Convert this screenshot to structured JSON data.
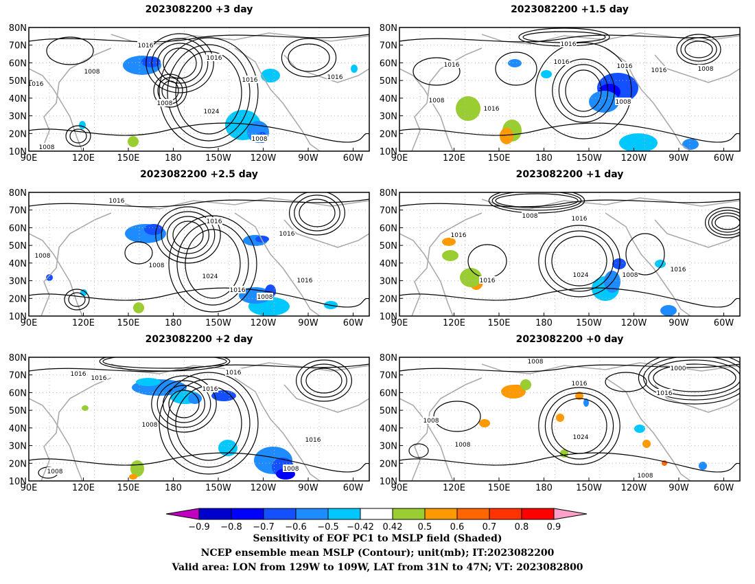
{
  "panels": [
    {
      "title": "2023082200 +3 day",
      "labels": [
        "1016",
        "1016",
        "1008",
        "1016",
        "1008",
        "1016",
        "1024",
        "1008",
        "1008",
        "1016"
      ]
    },
    {
      "title": "2023082200 +1.5 day",
      "labels": [
        "1016",
        "1016",
        "1016",
        "1016",
        "1016",
        "1008",
        "1008",
        "1016",
        "1008"
      ]
    },
    {
      "title": "2023082200 +2.5 day",
      "labels": [
        "1016",
        "1016",
        "1016",
        "1008",
        "1008",
        "1024",
        "1016",
        "1008",
        "1016"
      ]
    },
    {
      "title": "2023082200 +1 day",
      "labels": [
        "1008",
        "1016",
        "1016",
        "1016",
        "1024",
        "1008",
        "1016"
      ]
    },
    {
      "title": "2023082200 +2 day",
      "labels": [
        "1016",
        "1016",
        "1016",
        "1016",
        "1008",
        "1008",
        "1016",
        "1008"
      ]
    },
    {
      "title": "2023082200 +0 day",
      "labels": [
        "1008",
        "1000",
        "1016",
        "1016",
        "1008",
        "1008",
        "1024",
        "1008"
      ]
    }
  ],
  "axes": {
    "lat_labels": [
      "80N",
      "70N",
      "60N",
      "50N",
      "40N",
      "30N",
      "20N",
      "10N"
    ],
    "lon_labels": [
      "90E",
      "120E",
      "150E",
      "180",
      "150W",
      "120W",
      "90W",
      "60W"
    ]
  },
  "colorbar": {
    "labels": [
      "−0.9",
      "−0.8",
      "−0.7",
      "−0.6",
      "−0.5",
      "−0.42",
      "0.42",
      "0.5",
      "0.6",
      "0.7",
      "0.8",
      "0.9"
    ],
    "colors": [
      "#0000cd",
      "#0000ff",
      "#1450ff",
      "#1e8cff",
      "#00c8ff",
      "#ffffff",
      "#9acd32",
      "#ff9900",
      "#ff6600",
      "#ff3300",
      "#ff0000"
    ],
    "left_arrow_color": "#c000c0",
    "right_arrow_color": "#ffa0c8"
  },
  "captions": [
    "Sensitivity of EOF PC1 to MSLP field (Shaded)",
    "NCEP ensemble mean MSLP (Contour); unit(mb); IT:2023082200",
    "Valid area: LON from 129W to 109W, LAT from 31N to 47N; VT: 2023082800"
  ]
}
